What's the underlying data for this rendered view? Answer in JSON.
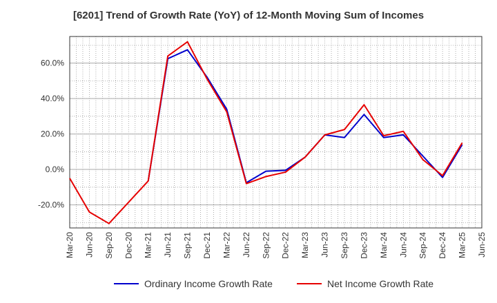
{
  "chart_data": {
    "type": "line",
    "title": "[6201]  Trend of Growth Rate (YoY) of 12-Month Moving Sum of Incomes",
    "xlabel": "",
    "ylabel": "",
    "ylim": [
      -33,
      75
    ],
    "y_ticks": [
      -20,
      0,
      20,
      40,
      60
    ],
    "y_tick_labels": [
      "-20.0%",
      "0.0%",
      "20.0%",
      "40.0%",
      "60.0%"
    ],
    "x": [
      "Mar-20",
      "Apr-20",
      "May-20",
      "Jun-20",
      "Jul-20",
      "Aug-20",
      "Sep-20",
      "Oct-20",
      "Nov-20",
      "Dec-20",
      "Jan-21",
      "Feb-21",
      "Mar-21",
      "Apr-21",
      "May-21",
      "Jun-21",
      "Jul-21",
      "Aug-21",
      "Sep-21",
      "Oct-21",
      "Nov-21",
      "Dec-21",
      "Jan-22",
      "Feb-22",
      "Mar-22",
      "Apr-22",
      "May-22",
      "Jun-22",
      "Jul-22",
      "Aug-22",
      "Sep-22",
      "Oct-22",
      "Nov-22",
      "Dec-22",
      "Jan-23",
      "Feb-23",
      "Mar-23",
      "Apr-23",
      "May-23",
      "Jun-23",
      "Jul-23",
      "Aug-23",
      "Sep-23",
      "Oct-23",
      "Nov-23",
      "Dec-23",
      "Jan-24",
      "Feb-24",
      "Mar-24",
      "Apr-24",
      "May-24",
      "Jun-24",
      "Jul-24",
      "Aug-24",
      "Sep-24",
      "Oct-24",
      "Nov-24",
      "Dec-24",
      "Jan-25",
      "Feb-25",
      "Mar-25",
      "Apr-25",
      "May-25",
      "Jun-25"
    ],
    "x_tick_labels": [
      "Mar-20",
      "Jun-20",
      "Sep-20",
      "Dec-20",
      "Mar-21",
      "Jun-21",
      "Sep-21",
      "Dec-21",
      "Mar-22",
      "Jun-22",
      "Sep-22",
      "Dec-22",
      "Mar-23",
      "Jun-23",
      "Sep-23",
      "Dec-23",
      "Mar-24",
      "Jun-24",
      "Sep-24",
      "Dec-24",
      "Mar-25",
      "Jun-25"
    ],
    "grid": true,
    "legend_position": "bottom",
    "series": [
      {
        "name": "Ordinary Income Growth Rate",
        "color": "#0000cc",
        "points": [
          [
            "Mar-21",
            -6.5
          ],
          [
            "Jun-21",
            62.5
          ],
          [
            "Sep-21",
            67.5
          ],
          [
            "Dec-21",
            52
          ],
          [
            "Mar-22",
            34
          ],
          [
            "Jun-22",
            -7.5
          ],
          [
            "Sep-22",
            -1
          ],
          [
            "Dec-22",
            -0.5
          ],
          [
            "Mar-23",
            7
          ],
          [
            "Jun-23",
            19.5
          ],
          [
            "Sep-23",
            18
          ],
          [
            "Dec-23",
            31
          ],
          [
            "Mar-24",
            18
          ],
          [
            "Jun-24",
            19.5
          ],
          [
            "Sep-24",
            7.5
          ],
          [
            "Dec-24",
            -4.5
          ],
          [
            "Mar-25",
            14
          ]
        ]
      },
      {
        "name": "Net Income Growth Rate",
        "color": "#e60000",
        "points": [
          [
            "Mar-20",
            -5
          ],
          [
            "Jun-20",
            -24
          ],
          [
            "Sep-20",
            -30.5
          ],
          [
            "Dec-20",
            -18.5
          ],
          [
            "Mar-21",
            -6.5
          ],
          [
            "Jun-21",
            64
          ],
          [
            "Sep-21",
            72
          ],
          [
            "Dec-21",
            51
          ],
          [
            "Mar-22",
            32.5
          ],
          [
            "Jun-22",
            -8
          ],
          [
            "Sep-22",
            -4
          ],
          [
            "Dec-22",
            -1.5
          ],
          [
            "Mar-23",
            7
          ],
          [
            "Jun-23",
            19.5
          ],
          [
            "Sep-23",
            22.5
          ],
          [
            "Dec-23",
            36.5
          ],
          [
            "Mar-24",
            19
          ],
          [
            "Jun-24",
            21.5
          ],
          [
            "Sep-24",
            5.5
          ],
          [
            "Dec-24",
            -3.5
          ],
          [
            "Mar-25",
            15
          ]
        ]
      }
    ]
  }
}
